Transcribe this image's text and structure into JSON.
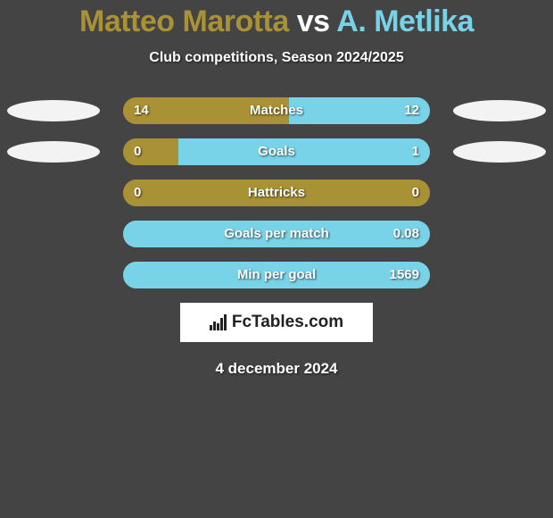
{
  "title": {
    "player1": "Matteo Marotta",
    "vs": "vs",
    "player2": "A. Metlika",
    "p1_color": "#a99135",
    "p2_color": "#79d3e8"
  },
  "subtitle": "Club competitions, Season 2024/2025",
  "colors": {
    "left": "#a99135",
    "right": "#79d3e8",
    "oval_left": "#f3f3f3",
    "oval_right": "#f3f3f3",
    "track_bg": "#a99135",
    "text": "#ffffff",
    "background": "#444444",
    "brand_bg": "#ffffff",
    "brand_text": "#222222"
  },
  "bar": {
    "radius": 15,
    "height": 30,
    "track_width": 344
  },
  "rows": [
    {
      "label": "Matches",
      "left_val": "14",
      "right_val": "12",
      "left_pct": 54,
      "right_pct": 46,
      "oval_left_color": "#f3f3f3",
      "oval_right_color": "#f3f3f3",
      "show_left_oval": true,
      "show_right_oval": true
    },
    {
      "label": "Goals",
      "left_val": "0",
      "right_val": "1",
      "left_pct": 18,
      "right_pct": 82,
      "oval_left_color": "#f3f3f3",
      "oval_right_color": "#f3f3f3",
      "show_left_oval": true,
      "show_right_oval": true
    },
    {
      "label": "Hattricks",
      "left_val": "0",
      "right_val": "0",
      "left_pct": 100,
      "right_pct": 0,
      "show_left_oval": false,
      "show_right_oval": false
    },
    {
      "label": "Goals per match",
      "left_val": "",
      "right_val": "0.08",
      "left_pct": 0,
      "right_pct": 100,
      "show_left_oval": false,
      "show_right_oval": false
    },
    {
      "label": "Min per goal",
      "left_val": "",
      "right_val": "1569",
      "left_pct": 0,
      "right_pct": 100,
      "show_left_oval": false,
      "show_right_oval": false
    }
  ],
  "brand": "FcTables.com",
  "date": "4 december 2024"
}
